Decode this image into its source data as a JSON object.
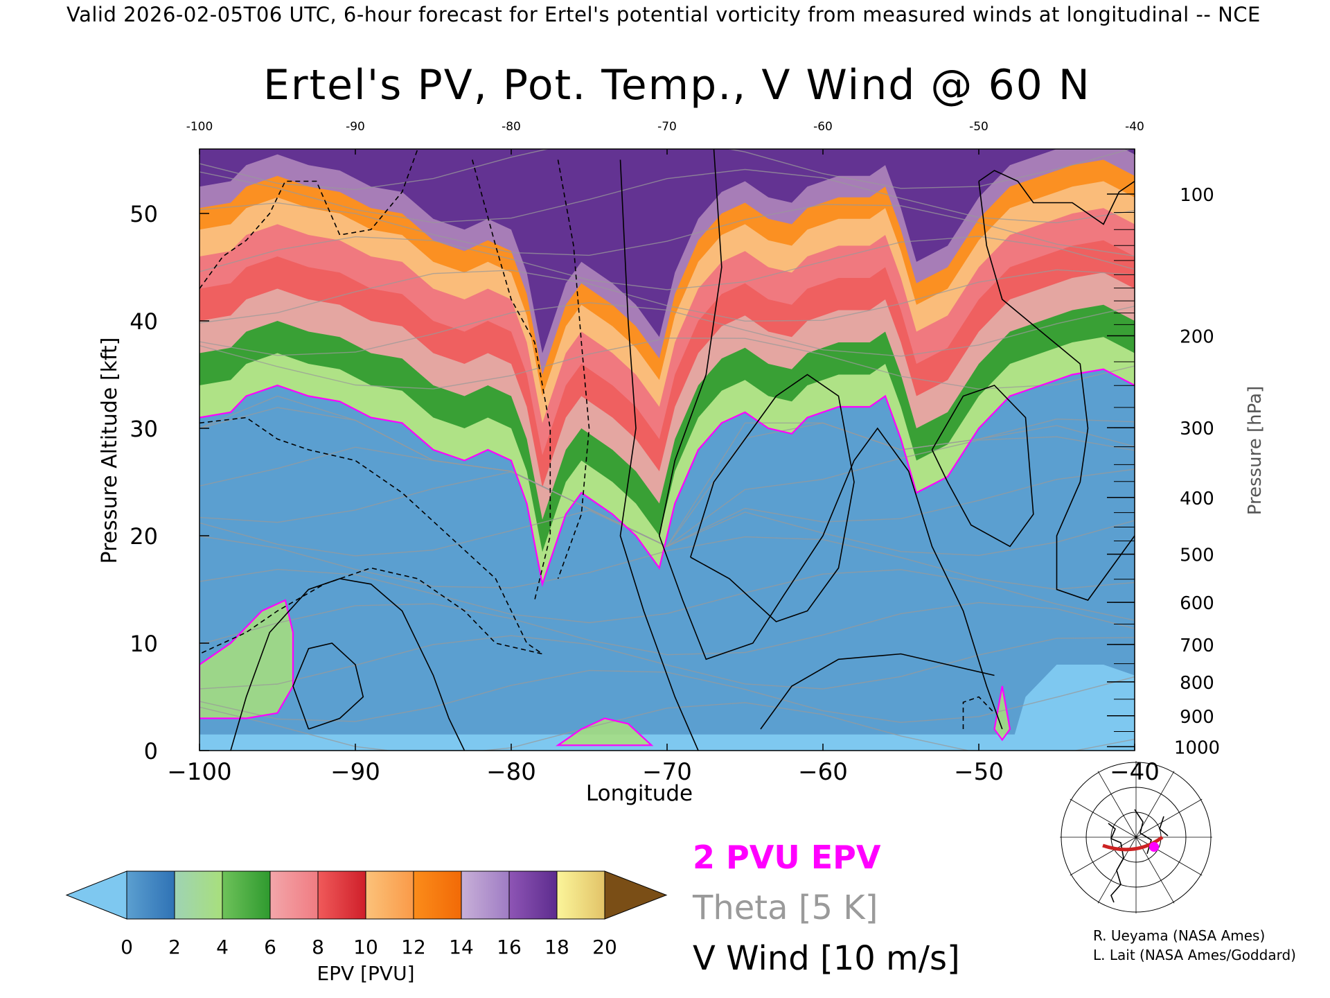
{
  "header": {
    "caption": "Valid 2026-02-05T06 UTC, 6-hour forecast for Ertel's potential vorticity from measured winds at longitudinal -- NCE",
    "title": "Ertel's PV, Pot. Temp., V Wind @ 60 N"
  },
  "legend": {
    "pv": "2 PVU EPV",
    "theta": "Theta [5 K]",
    "vwind": "V Wind [10 m/s]"
  },
  "credits": [
    "R. Ueyama (NASA Ames)",
    "L. Lait (NASA Ames/Goddard)"
  ],
  "colors": {
    "pv_contour": "#ff00ff",
    "theta": "#9a9a9a",
    "track": "#cc2222",
    "marker": "#ff00ff"
  },
  "chart_data": {
    "type": "heatmap",
    "title": "Ertel's PV, Pot. Temp., V Wind @ 60 N",
    "xlabel": "Longitude",
    "ylabel": "Pressure Altitude [kft]",
    "y2label": "Pressure [hPa]",
    "xlim": [
      -100,
      -40
    ],
    "ylim": [
      0,
      56
    ],
    "x_ticks": [
      -100,
      -90,
      -80,
      -70,
      -60,
      -50,
      -40
    ],
    "x_tick_labels": [
      "−100",
      "−90",
      "−80",
      "−70",
      "−60",
      "−50",
      "−40"
    ],
    "top_x_tick_labels": [
      "-100",
      "-90",
      "-80",
      "-70",
      "-60",
      "-50",
      "-40"
    ],
    "y_ticks": [
      0,
      10,
      20,
      30,
      40,
      50
    ],
    "pressure_ticks": [
      {
        "hpa": 100,
        "label": "100"
      },
      {
        "hpa": 200,
        "label": "200"
      },
      {
        "hpa": 300,
        "label": "300"
      },
      {
        "hpa": 400,
        "label": "400"
      },
      {
        "hpa": 500,
        "label": "500"
      },
      {
        "hpa": 600,
        "label": "600"
      },
      {
        "hpa": 700,
        "label": "700"
      },
      {
        "hpa": 800,
        "label": "800"
      },
      {
        "hpa": 900,
        "label": "900"
      },
      {
        "hpa": 1000,
        "label": "1000"
      }
    ],
    "colorbar": {
      "label": "EPV [PVU]",
      "ticks": [
        0,
        2,
        4,
        6,
        8,
        10,
        12,
        14,
        16,
        18,
        20
      ],
      "under_color": "#7ec8f0",
      "over_color": "#7a4e16",
      "bins": [
        {
          "from": 0,
          "to": 2,
          "colors": [
            "#5b9fd0",
            "#2f72b5"
          ]
        },
        {
          "from": 2,
          "to": 4,
          "colors": [
            "#9fd3b4",
            "#a8df7c"
          ]
        },
        {
          "from": 4,
          "to": 6,
          "colors": [
            "#6ec25a",
            "#2f9a2f"
          ]
        },
        {
          "from": 6,
          "to": 8,
          "colors": [
            "#f3a6aa",
            "#f07c82"
          ]
        },
        {
          "from": 8,
          "to": 10,
          "colors": [
            "#f05a5a",
            "#cf1f2a"
          ]
        },
        {
          "from": 10,
          "to": 12,
          "colors": [
            "#fbc27a",
            "#fa9a48"
          ]
        },
        {
          "from": 12,
          "to": 14,
          "colors": [
            "#fb8c1a",
            "#f26a07"
          ]
        },
        {
          "from": 14,
          "to": 16,
          "colors": [
            "#c8b0d8",
            "#9f7cc4"
          ]
        },
        {
          "from": 16,
          "to": 18,
          "colors": [
            "#8e55b5",
            "#5d2c8e"
          ]
        },
        {
          "from": 18,
          "to": 20,
          "colors": [
            "#fbf59a",
            "#e2c368"
          ]
        }
      ]
    },
    "pv_2pvu_contour": [
      [
        -100,
        31
      ],
      [
        -98,
        31.5
      ],
      [
        -97,
        33
      ],
      [
        -95,
        34
      ],
      [
        -93,
        33
      ],
      [
        -91,
        32.5
      ],
      [
        -89,
        31
      ],
      [
        -87,
        30.5
      ],
      [
        -85,
        28
      ],
      [
        -83,
        27
      ],
      [
        -81.5,
        28
      ],
      [
        -80,
        27
      ],
      [
        -79,
        23
      ],
      [
        -78,
        15.5
      ],
      [
        -76.5,
        22
      ],
      [
        -75.5,
        24
      ],
      [
        -73.5,
        22
      ],
      [
        -72,
        20
      ],
      [
        -70.5,
        17
      ],
      [
        -69.5,
        23
      ],
      [
        -68,
        28
      ],
      [
        -66.5,
        30.5
      ],
      [
        -65,
        31.5
      ],
      [
        -63.5,
        30
      ],
      [
        -62,
        29.5
      ],
      [
        -61,
        31
      ],
      [
        -59,
        32
      ],
      [
        -57,
        32
      ],
      [
        -56,
        33
      ],
      [
        -55,
        29
      ],
      [
        -54,
        24
      ],
      [
        -52,
        25.5
      ],
      [
        -50,
        30
      ],
      [
        -48,
        33
      ],
      [
        -46,
        34
      ],
      [
        -44,
        35
      ],
      [
        -42,
        35.5
      ],
      [
        -40,
        34
      ]
    ],
    "pv_2pvu_islands": [
      [
        [
          -100,
          8
        ],
        [
          -98,
          10
        ],
        [
          -96,
          13
        ],
        [
          -94.5,
          14
        ],
        [
          -94,
          11
        ],
        [
          -94,
          6
        ],
        [
          -95,
          3.5
        ],
        [
          -97,
          3
        ],
        [
          -100,
          3
        ]
      ],
      [
        [
          -77,
          0.5
        ],
        [
          -75.5,
          2
        ],
        [
          -74,
          3
        ],
        [
          -72.5,
          2.5
        ],
        [
          -71,
          0.5
        ]
      ],
      [
        [
          -49,
          2
        ],
        [
          -48.5,
          6
        ],
        [
          -48,
          2
        ],
        [
          -48.5,
          1
        ]
      ]
    ],
    "vwind_contours": [
      {
        "level": 10,
        "dashed": false,
        "points": [
          [
            -98,
            0
          ],
          [
            -97,
            5
          ],
          [
            -95.5,
            11
          ],
          [
            -93,
            15
          ],
          [
            -91,
            16
          ],
          [
            -89,
            15.5
          ],
          [
            -87,
            13
          ],
          [
            -85,
            7
          ],
          [
            -84,
            3
          ],
          [
            -83,
            0
          ]
        ]
      },
      {
        "level": 10,
        "dashed": false,
        "points": [
          [
            -93,
            2
          ],
          [
            -94,
            6
          ],
          [
            -93,
            9.5
          ],
          [
            -91.5,
            10
          ],
          [
            -90,
            8
          ],
          [
            -89.5,
            5
          ],
          [
            -91,
            3
          ],
          [
            -93,
            2
          ]
        ]
      },
      {
        "level": 0,
        "dashed": false,
        "points": [
          [
            -73,
            55
          ],
          [
            -72.5,
            40
          ],
          [
            -72,
            30
          ],
          [
            -73,
            20
          ],
          [
            -71.5,
            13
          ],
          [
            -69.5,
            5
          ],
          [
            -68,
            0
          ]
        ]
      },
      {
        "level": 10,
        "dashed": false,
        "points": [
          [
            -67,
            56
          ],
          [
            -66.5,
            45
          ],
          [
            -67.5,
            35
          ],
          [
            -69.5,
            27
          ],
          [
            -70.5,
            20
          ],
          [
            -69,
            14
          ],
          [
            -67.5,
            8.5
          ],
          [
            -64.5,
            10
          ],
          [
            -62.5,
            14.5
          ],
          [
            -60,
            20
          ],
          [
            -58,
            27
          ],
          [
            -56.5,
            30
          ],
          [
            -54.5,
            26
          ],
          [
            -53,
            19
          ],
          [
            -51,
            13
          ],
          [
            -49.5,
            6
          ],
          [
            -48.5,
            2
          ]
        ]
      },
      {
        "level": 10,
        "dashed": false,
        "points": [
          [
            -68.5,
            18
          ],
          [
            -67,
            25
          ],
          [
            -65,
            29
          ],
          [
            -63,
            33
          ],
          [
            -61,
            35
          ],
          [
            -59,
            33
          ],
          [
            -58,
            25
          ],
          [
            -59,
            17
          ],
          [
            -61,
            13
          ],
          [
            -63,
            12
          ],
          [
            -66,
            16
          ],
          [
            -68.5,
            18
          ]
        ]
      },
      {
        "level": 10,
        "dashed": false,
        "points": [
          [
            -53,
            28
          ],
          [
            -51,
            33
          ],
          [
            -49,
            34
          ],
          [
            -47,
            31
          ],
          [
            -46.5,
            22
          ],
          [
            -48,
            19
          ],
          [
            -50.5,
            21
          ],
          [
            -52,
            25
          ],
          [
            -53,
            28
          ]
        ]
      },
      {
        "level": 10,
        "dashed": false,
        "points": [
          [
            -50,
            53
          ],
          [
            -49,
            54
          ],
          [
            -47.5,
            53
          ],
          [
            -46.5,
            51
          ],
          [
            -44,
            51
          ],
          [
            -42,
            49
          ],
          [
            -41,
            52
          ],
          [
            -40,
            53
          ]
        ]
      },
      {
        "level": 10,
        "dashed": false,
        "points": [
          [
            -50,
            53
          ],
          [
            -49.5,
            47
          ],
          [
            -48.5,
            42
          ],
          [
            -46,
            39
          ],
          [
            -43.5,
            36
          ],
          [
            -43,
            30
          ],
          [
            -43.5,
            25
          ],
          [
            -45,
            20
          ],
          [
            -45,
            15
          ],
          [
            -43,
            14
          ],
          [
            -41,
            18
          ],
          [
            -40,
            20
          ]
        ]
      },
      {
        "level": 10,
        "dashed": false,
        "points": [
          [
            -64,
            2
          ],
          [
            -62,
            6
          ],
          [
            -59,
            8.5
          ],
          [
            -55,
            9
          ],
          [
            -52,
            8
          ],
          [
            -49,
            7
          ]
        ]
      },
      {
        "level": -10,
        "dashed": true,
        "points": [
          [
            -100,
            30.5
          ],
          [
            -97,
            31
          ],
          [
            -95,
            29
          ],
          [
            -93,
            28
          ],
          [
            -90,
            27
          ],
          [
            -87,
            24
          ],
          [
            -84,
            20
          ],
          [
            -81,
            16
          ],
          [
            -79,
            10
          ],
          [
            -78,
            9
          ],
          [
            -81,
            10
          ],
          [
            -83,
            13
          ],
          [
            -86,
            16
          ],
          [
            -89,
            17
          ],
          [
            -92,
            15.5
          ],
          [
            -95,
            13
          ],
          [
            -97,
            11
          ],
          [
            -100,
            9
          ]
        ]
      },
      {
        "level": -30,
        "dashed": true,
        "points": [
          [
            -82.5,
            55
          ],
          [
            -81,
            47
          ],
          [
            -80,
            42
          ],
          [
            -78.5,
            38
          ],
          [
            -77.5,
            30
          ],
          [
            -77.5,
            20
          ],
          [
            -78.5,
            14
          ]
        ]
      },
      {
        "level": -30,
        "dashed": true,
        "points": [
          [
            -77,
            55
          ],
          [
            -76,
            47
          ],
          [
            -75.5,
            38
          ],
          [
            -75,
            30
          ],
          [
            -75.5,
            22
          ],
          [
            -77,
            16
          ]
        ]
      },
      {
        "level": -30,
        "dashed": true,
        "points": [
          [
            -100,
            43
          ],
          [
            -98.5,
            46
          ],
          [
            -97,
            47.5
          ],
          [
            -95.5,
            50
          ],
          [
            -94.5,
            53
          ],
          [
            -92.5,
            53
          ],
          [
            -91,
            48
          ],
          [
            -89,
            48.5
          ],
          [
            -87,
            52
          ],
          [
            -86,
            56
          ]
        ]
      },
      {
        "level": -30,
        "dashed": true,
        "points": [
          [
            -51,
            2
          ],
          [
            -51,
            4.5
          ],
          [
            -50,
            5
          ],
          [
            -49,
            3.5
          ]
        ]
      }
    ],
    "theta_levels_K": [
      250,
      260,
      270,
      280,
      290,
      300,
      310,
      320,
      330,
      340,
      350,
      360,
      370,
      380,
      390,
      400,
      410,
      420
    ]
  },
  "inset": {
    "track_lon": [
      -100,
      -40
    ],
    "track_lat": 60,
    "marker_lon": -48,
    "marker_lat": 58
  }
}
